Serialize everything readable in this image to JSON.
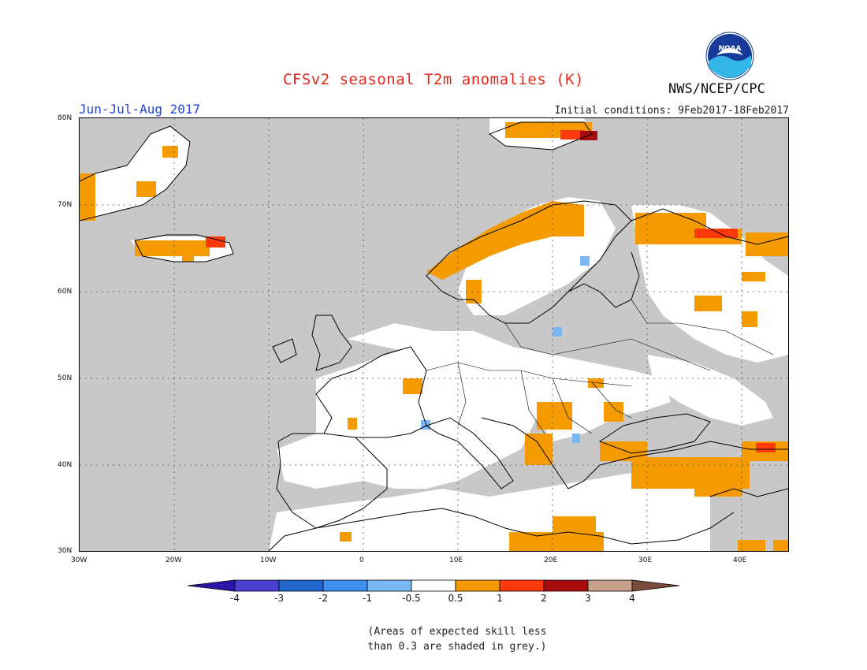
{
  "header": {
    "title": "CFSv2 seasonal T2m anomalies (K)",
    "period": "Jun-Jul-Aug 2017",
    "initial_conditions": "Initial conditions: 9Feb2017-18Feb2017",
    "agency": "NWS/NCEP/CPC",
    "logo_text": "NOAA"
  },
  "map": {
    "extent": {
      "lon": [
        -30,
        45
      ],
      "lat": [
        30,
        80
      ]
    },
    "lon_ticks": [
      "30W",
      "20W",
      "10W",
      "0",
      "10E",
      "20E",
      "30E",
      "40E"
    ],
    "lat_ticks": [
      "80N",
      "70N",
      "60N",
      "50N",
      "40N",
      "30N"
    ],
    "grid": true,
    "skill_mask_color": "#c8c8c8"
  },
  "legend": {
    "colors": [
      "#2b14a8",
      "#4a3fd0",
      "#2268cc",
      "#3d8ff0",
      "#7ab8f5",
      "#ffffff",
      "#f59b00",
      "#ff3a0a",
      "#a80e0e",
      "#c8a08c",
      "#7a4a3a"
    ],
    "labels": [
      "-4",
      "-3",
      "-2",
      "-1",
      "-0.5",
      "0.5",
      "1",
      "2",
      "3",
      "4"
    ]
  },
  "note": "(Areas of expected skill less\nthan 0.3 are shaded in grey.)"
}
